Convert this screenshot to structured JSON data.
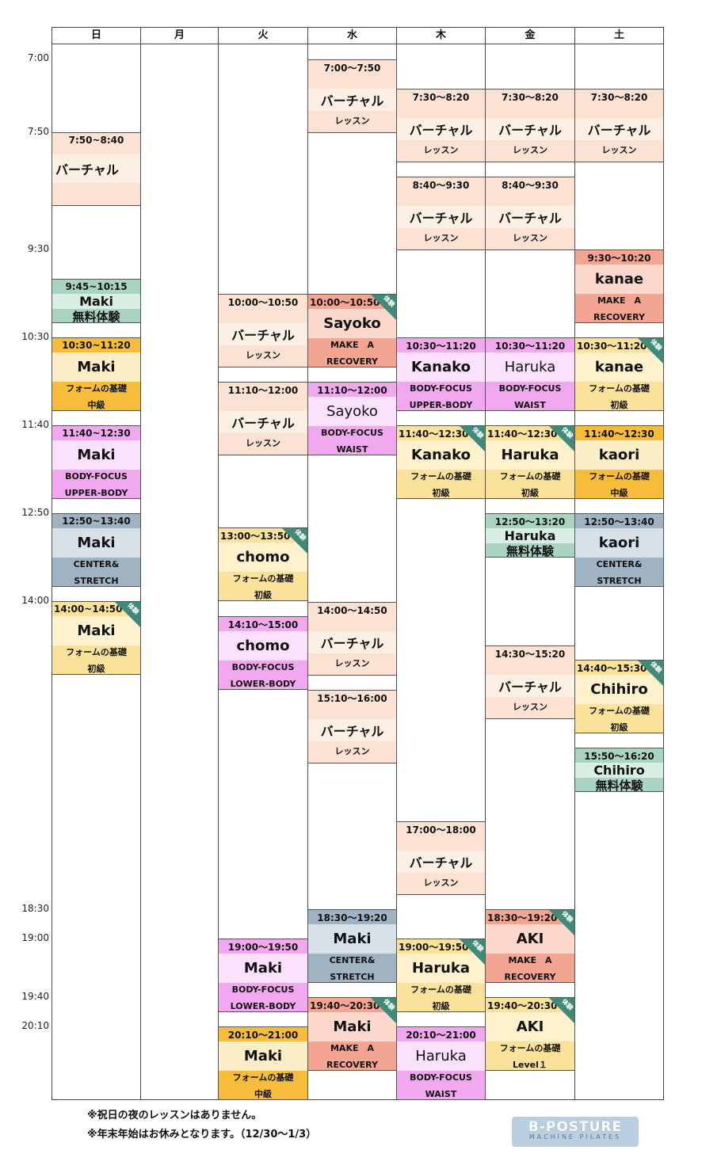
{
  "days": [
    "日",
    "月",
    "火",
    "水",
    "木",
    "金",
    "土"
  ],
  "times": [
    "7:00",
    "7:50",
    "9:30",
    "10:30",
    "11:40",
    "12:50",
    "14:00",
    "18:30",
    "19:00",
    "19:40",
    "20:10"
  ],
  "colors": {
    "peach": "#fbe2d2",
    "peach_light": "#fcefe4",
    "green": "#a9d4c0",
    "green_light": "#d9eee4",
    "orange": "#f7bc3a",
    "cream": "#fdeec7",
    "cream_light": "#fff5da",
    "pink": "#f1a8ee",
    "pink_light": "#fbe1fb",
    "slate": "#9fb3c3",
    "slate_light": "#d8e0e8",
    "salmon": "#f3a592",
    "salmon_light": "#fcd8cd",
    "yellow": "#fbe29a",
    "yellow_light": "#fff2cc",
    "badge_green": "#3f8a78"
  },
  "badge_text": "体験",
  "events": [
    {
      "time": "7:50~8:40",
      "title": "バーチャル",
      "sub": ""
    },
    {
      "time": "9:45~10:15",
      "title": "Maki",
      "sub": "無料体験"
    },
    {
      "time": "10:30~11:20",
      "title": "Maki",
      "sub": "フォームの基礎\n中級"
    },
    {
      "time": "11:40~12:30",
      "title": "Maki",
      "sub": "BODY-FOCUS\nUPPER-BODY"
    },
    {
      "time": "12:50~13:40",
      "title": "Maki",
      "sub": "CENTER&\nSTRETCH"
    },
    {
      "time": "14:00~14:50",
      "title": "Maki",
      "sub": "フォームの基礎\n初級"
    },
    {
      "time": "10:00～10:50",
      "title": "バーチャル",
      "sub": "レッスン"
    },
    {
      "time": "11:10～12:00",
      "title": "バーチャル",
      "sub": "レッスン"
    },
    {
      "time": "13:00～13:50",
      "title": "chomo",
      "sub": "フォームの基礎\n初級"
    },
    {
      "time": "14:10～15:00",
      "title": "chomo",
      "sub": "BODY-FOCUS\nLOWER-BODY"
    },
    {
      "time": "19:00～19:50",
      "title": "Maki",
      "sub": "BODY-FOCUS\nLOWER-BODY"
    },
    {
      "time": "20:10～21:00",
      "title": "Maki",
      "sub": "フォームの基礎\n中級"
    },
    {
      "time": "7:00～7:50",
      "title": "バーチャル",
      "sub": "レッスン"
    },
    {
      "time": "10:00～10:50",
      "title": "Sayoko",
      "sub": "MAKE　A\nRECOVERY"
    },
    {
      "time": "11:10～12:00",
      "title": "Sayoko",
      "sub": "BODY-FOCUS\nWAIST"
    },
    {
      "time": "14:00～14:50",
      "title": "バーチャル",
      "sub": "レッスン"
    },
    {
      "time": "15:10～16:00",
      "title": "バーチャル",
      "sub": "レッスン"
    },
    {
      "time": "18:30～19:20",
      "title": "Maki",
      "sub": "CENTER&\nSTRETCH"
    },
    {
      "time": "19:40～20:30",
      "title": "Maki",
      "sub": "MAKE　A\nRECOVERY"
    },
    {
      "time": "7:30～8:20",
      "title": "バーチャル",
      "sub": "レッスン"
    },
    {
      "time": "8:40～9:30",
      "title": "バーチャル",
      "sub": "レッスン"
    },
    {
      "time": "10:30～11:20",
      "title": "Kanako",
      "sub": "BODY-FOCUS\nUPPER-BODY"
    },
    {
      "time": "11:40～12:30",
      "title": "Kanako",
      "sub": "フォームの基礎\n初級"
    },
    {
      "time": "17:00～18:00",
      "title": "バーチャル",
      "sub": "レッスン"
    },
    {
      "time": "19:00～19:50",
      "title": "Haruka",
      "sub": "フォームの基礎\n初級"
    },
    {
      "time": "20:10～21:00",
      "title": "Haruka",
      "sub": "BODY-FOCUS\nWAIST"
    },
    {
      "time": "7:30～8:20",
      "title": "バーチャル",
      "sub": "レッスン"
    },
    {
      "time": "8:40～9:30",
      "title": "バーチャル",
      "sub": "レッスン"
    },
    {
      "time": "10:30～11:20",
      "title": "Haruka",
      "sub": "BODY-FOCUS\nWAIST"
    },
    {
      "time": "11:40～12:30",
      "title": "Haruka",
      "sub": "フォームの基礎\n初級"
    },
    {
      "time": "12:50～13:20",
      "title": "Haruka",
      "sub": "無料体験"
    },
    {
      "time": "14:30～15:20",
      "title": "バーチャル",
      "sub": "レッスン"
    },
    {
      "time": "18:30～19:20",
      "title": "AKI",
      "sub": "MAKE　A\nRECOVERY"
    },
    {
      "time": "19:40～20:30",
      "title": "AKI",
      "sub": "フォームの基礎\nLevel１"
    },
    {
      "time": "7:30～8:20",
      "title": "バーチャル",
      "sub": "レッスン"
    },
    {
      "time": "9:30～10:20",
      "title": "kanae",
      "sub": "MAKE　A\nRECOVERY"
    },
    {
      "time": "10:30～11:20",
      "title": "kanae",
      "sub": "フォームの基礎\n初級"
    },
    {
      "time": "11:40～12:30",
      "title": "kaori",
      "sub": "フォームの基礎\n中級"
    },
    {
      "time": "12:50～13:40",
      "title": "kaori",
      "sub": "CENTER&\nSTRETCH"
    },
    {
      "time": "14:40～15:30",
      "title": "Chihiro",
      "sub": "フォームの基礎\n初級"
    },
    {
      "time": "15:50～16:20",
      "title": "Chihiro",
      "sub": "無料体験"
    }
  ],
  "notes": [
    "※祝日の夜のレッスンはありません。",
    "※年末年始はお休みとなります。（12/30～1/3）"
  ],
  "logo": {
    "main": "B-POSTURE",
    "sub": "MACHINE PILATES"
  }
}
